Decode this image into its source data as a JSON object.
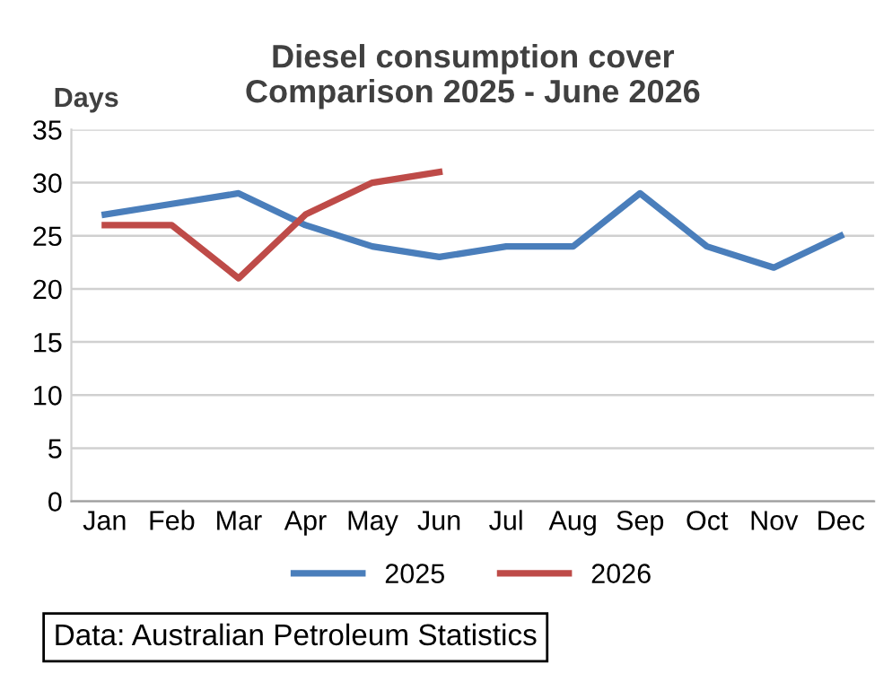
{
  "chart_data": {
    "type": "line",
    "title": "Diesel consumption cover\nComparison 2025 - June 2026",
    "ylabel": "Days",
    "categories": [
      "Jan",
      "Feb",
      "Mar",
      "Apr",
      "May",
      "Jun",
      "Jul",
      "Aug",
      "Sep",
      "Oct",
      "Nov",
      "Dec"
    ],
    "series": [
      {
        "name": "2025",
        "color": "#4a7ebb",
        "values": [
          27,
          28,
          29,
          26,
          24,
          23,
          24,
          24,
          29,
          24,
          22,
          25
        ]
      },
      {
        "name": "2026",
        "color": "#be4b48",
        "values": [
          26,
          26,
          21,
          27,
          30,
          31,
          null,
          null,
          null,
          null,
          null,
          null
        ]
      }
    ],
    "ylim": [
      0,
      35
    ],
    "yticks": [
      0,
      5,
      10,
      15,
      20,
      25,
      30,
      35
    ],
    "grid": "y",
    "legend": "bottom",
    "marker": "none",
    "line_style": "solid",
    "annotations": [
      "Data: Australian Petroleum Statistics"
    ]
  }
}
